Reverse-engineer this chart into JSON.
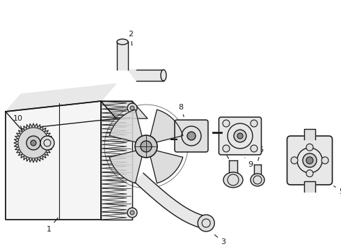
{
  "background_color": "#ffffff",
  "line_color": "#1a1a1a",
  "line_width": 1.0,
  "figsize": [
    4.9,
    3.6
  ],
  "dpi": 100
}
